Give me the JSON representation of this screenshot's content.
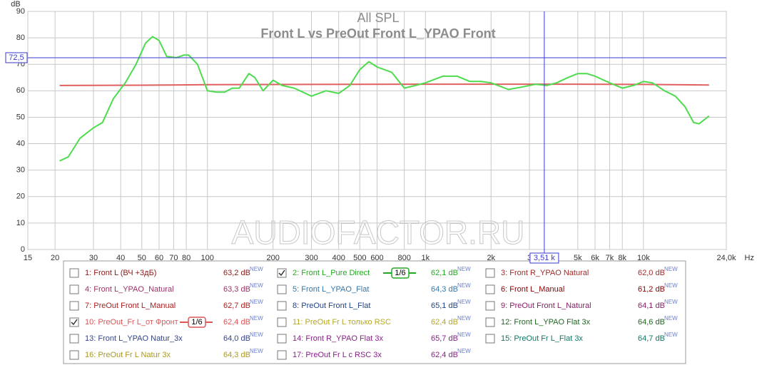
{
  "chart_data": {
    "type": "line",
    "title": "All SPL",
    "subtitle": "Front L vs PreOut Front L_YPAO Front",
    "ylabel": "dB",
    "xunit": "Hz",
    "watermark": "AUDIOFACTOR.RU",
    "xscale": "log",
    "grid": true,
    "xlim": [
      15,
      24000
    ],
    "ylim": [
      0,
      90
    ],
    "yticks": [
      0,
      10,
      20,
      30,
      40,
      50,
      60,
      70,
      80,
      90
    ],
    "xticks": [
      15,
      20,
      30,
      40,
      50,
      60,
      70,
      80,
      100,
      200,
      300,
      400,
      500,
      600,
      800,
      {
        "value": 1000,
        "label": "1k"
      },
      {
        "value": 2000,
        "label": "2k"
      },
      {
        "value": 3000,
        "label": "3"
      },
      {
        "value": 5000,
        "label": "5k"
      },
      {
        "value": 6000,
        "label": "6k"
      },
      {
        "value": 7000,
        "label": "7k"
      },
      {
        "value": 8000,
        "label": "8k"
      },
      {
        "value": 10000,
        "label": "10k"
      },
      {
        "value": 24000,
        "label": "24,0k"
      }
    ],
    "cursor": {
      "x": {
        "value": 3510,
        "label": "3,51 k"
      },
      "y": {
        "value": 72.5,
        "label": "72,5"
      }
    },
    "series": [
      {
        "name": "2: Front L_Pure Direct",
        "color": "#4ddc4d",
        "x": [
          21,
          23,
          26,
          30,
          33,
          37,
          42,
          47,
          52,
          56,
          60,
          65,
          72,
          78,
          82,
          90,
          100,
          110,
          120,
          130,
          140,
          155,
          165,
          180,
          200,
          220,
          250,
          300,
          350,
          400,
          450,
          500,
          550,
          600,
          700,
          800,
          900,
          1000,
          1200,
          1400,
          1600,
          1800,
          2000,
          2400,
          2800,
          3200,
          3600,
          4000,
          4500,
          5000,
          5500,
          6000,
          7000,
          8000,
          9000,
          10000,
          11000,
          12500,
          14000,
          15500,
          17000,
          18000,
          20000
        ],
        "values": [
          33.5,
          35,
          42,
          46,
          48,
          57,
          63,
          70,
          78,
          80.5,
          79,
          73,
          72.5,
          73.5,
          73.5,
          70,
          60,
          59.5,
          59.5,
          61,
          61,
          66.5,
          65,
          60,
          64,
          62,
          61,
          58,
          60,
          59,
          62,
          68,
          71,
          69,
          67,
          61,
          62,
          63,
          65.5,
          65.5,
          63.5,
          63.5,
          63,
          60.5,
          61.5,
          62.5,
          62,
          63,
          65,
          66.5,
          66.5,
          65.5,
          63,
          61,
          62,
          63.5,
          63,
          60,
          58,
          54,
          48,
          47.5,
          50.5
        ]
      },
      {
        "name": "10: PreOut_Fr L_от Фронт",
        "color": "#e06060",
        "x": [
          21,
          50,
          100,
          300,
          1000,
          3000,
          5000,
          10000,
          20000
        ],
        "values": [
          62,
          62.1,
          62.3,
          62.4,
          62.5,
          62.5,
          62.5,
          62.4,
          62.2
        ]
      }
    ],
    "legend_badge": "NEW",
    "legend": [
      {
        "name": "1: Front L (ВЧ +3дБ)",
        "level": "63,2 dB",
        "color": "#8b1a1a",
        "checked": false
      },
      {
        "name": "2: Front L_Pure Direct",
        "level": "62,1 dB",
        "color": "#22aa22",
        "checked": true,
        "smoothing": "1/6"
      },
      {
        "name": "3: Front R_YPAO Natural",
        "level": "62,0 dB",
        "color": "#a52a2a",
        "checked": false
      },
      {
        "name": "4: Front L_YPAO_Natural",
        "level": "63,3 dB",
        "color": "#993366",
        "checked": false
      },
      {
        "name": "5: Front L_YPAO_Flat",
        "level": "64,3 dB",
        "color": "#3377aa",
        "checked": false
      },
      {
        "name": "6: Front L_Manual",
        "level": "61,2 dB",
        "color": "#8b0000",
        "checked": false
      },
      {
        "name": "7: PreOut Front L_Manual",
        "level": "62,7 dB",
        "color": "#aa2222",
        "checked": false
      },
      {
        "name": "8: PreOut Front L_Flat",
        "level": "65,1 dB",
        "color": "#224488",
        "checked": false
      },
      {
        "name": "9: PreOut Front L_Natural",
        "level": "64,1 dB",
        "color": "#882266",
        "checked": false
      },
      {
        "name": "10: PreOut_Fr L_от Фронт",
        "level": "62,4 dB",
        "color": "#dd5555",
        "checked": true,
        "smoothing": "1/6"
      },
      {
        "name": "11: PreOut Fr L только RSC",
        "level": "62,4 dB",
        "color": "#b8a622",
        "checked": false
      },
      {
        "name": "12: Front L_YPAO Flat 3x",
        "level": "64,6 dB",
        "color": "#226622",
        "checked": false
      },
      {
        "name": "13: Front L_YPAO Natur_3x",
        "level": "64,0 dB",
        "color": "#334488",
        "checked": false
      },
      {
        "name": "14: Front R_YPAO Flat 3x",
        "level": "65,7 dB",
        "color": "#882288",
        "checked": false
      },
      {
        "name": "15: PreOut Fr L_Flat 3x",
        "level": "64,7 dB",
        "color": "#117766",
        "checked": false
      },
      {
        "name": "16: PreOut Fr L Natur 3x",
        "level": "64,3 dB",
        "color": "#aa9922",
        "checked": false
      },
      {
        "name": "17: PreOut Fr L c RSC 3x",
        "level": "62,4 dB",
        "color": "#882288",
        "checked": false
      }
    ]
  }
}
